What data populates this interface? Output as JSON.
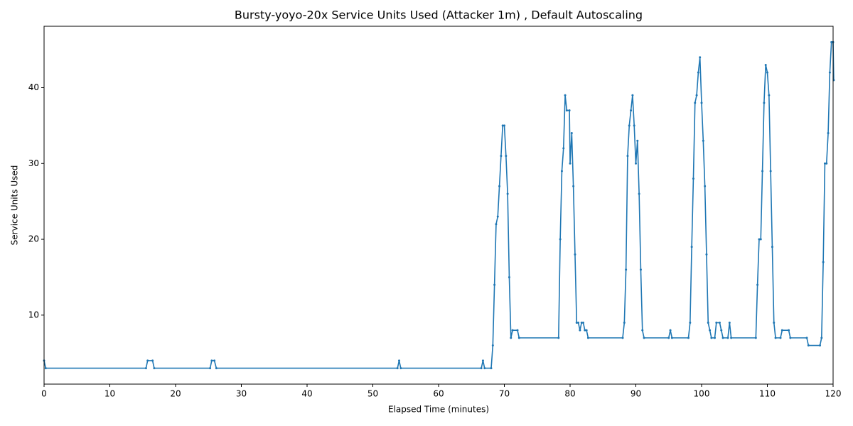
{
  "chart_data": {
    "type": "line",
    "title": "Bursty-yoyo-20x Service Units Used (Attacker 1m) , Default Autoscaling",
    "x_label": "Elapsed Time (minutes)",
    "y_label": "Service Units Used",
    "xlim": [
      0,
      120
    ],
    "ylim": [
      0.9,
      48.1
    ],
    "xticks": [
      0,
      10,
      20,
      30,
      40,
      50,
      60,
      70,
      80,
      90,
      100,
      110,
      120
    ],
    "yticks": [
      10,
      20,
      30,
      40
    ],
    "series": [
      {
        "color": "#1f77b4",
        "x": [
          0,
          0.25,
          15.5,
          15.75,
          16.5,
          16.75,
          25.25,
          25.5,
          25.9,
          26.2,
          53.75,
          54,
          54.25,
          66.5,
          66.75,
          67,
          68,
          68.25,
          68.5,
          68.75,
          69,
          69.25,
          69.5,
          69.75,
          70,
          70.25,
          70.5,
          70.75,
          71,
          71.25,
          72,
          72.25,
          78.25,
          78.5,
          78.75,
          79,
          79.25,
          79.5,
          79.9,
          80,
          80.25,
          80.5,
          80.75,
          81,
          81.25,
          81.5,
          81.75,
          82,
          82.25,
          82.5,
          82.75,
          88,
          88.25,
          88.5,
          88.75,
          89,
          89.25,
          89.5,
          89.75,
          90,
          90.25,
          90.5,
          90.75,
          91,
          91.25,
          95,
          95.25,
          95.5,
          98,
          98.25,
          98.5,
          98.75,
          99,
          99.25,
          99.5,
          99.75,
          100,
          100.25,
          100.5,
          100.75,
          101,
          101.25,
          101.5,
          102,
          102.25,
          102.75,
          103,
          103.25,
          104,
          104.25,
          104.5,
          108.25,
          108.5,
          108.75,
          109,
          109.25,
          109.5,
          109.75,
          110,
          110.25,
          110.5,
          110.75,
          111,
          111.25,
          112,
          112.25,
          113.25,
          113.5,
          116,
          116.25,
          118,
          118.25,
          118.5,
          118.75,
          119,
          119.25,
          119.5,
          119.75,
          120,
          120.1
        ],
        "values": [
          4,
          3,
          3,
          4,
          4,
          3,
          3,
          4,
          4,
          3,
          3,
          4,
          3,
          3,
          4,
          3,
          3,
          6,
          14,
          22,
          23,
          27,
          31,
          35,
          35,
          31,
          26,
          15,
          7,
          8,
          8,
          7,
          7,
          20,
          29,
          32,
          39,
          37,
          37,
          30,
          34,
          27,
          18,
          9,
          9,
          8,
          9,
          9,
          8,
          8,
          7,
          7,
          9,
          16,
          31,
          35,
          37,
          39,
          35,
          30,
          33,
          26,
          16,
          8,
          7,
          7,
          8,
          7,
          7,
          9,
          19,
          28,
          38,
          39,
          42,
          44,
          38,
          33,
          27,
          18,
          9,
          8,
          7,
          7,
          9,
          9,
          8,
          7,
          7,
          9,
          7,
          7,
          14,
          20,
          20,
          29,
          38,
          43,
          42,
          39,
          29,
          19,
          9,
          7,
          7,
          8,
          8,
          7,
          7,
          6,
          6,
          7,
          17,
          30,
          30,
          34,
          42,
          46,
          46,
          41
        ]
      }
    ]
  }
}
